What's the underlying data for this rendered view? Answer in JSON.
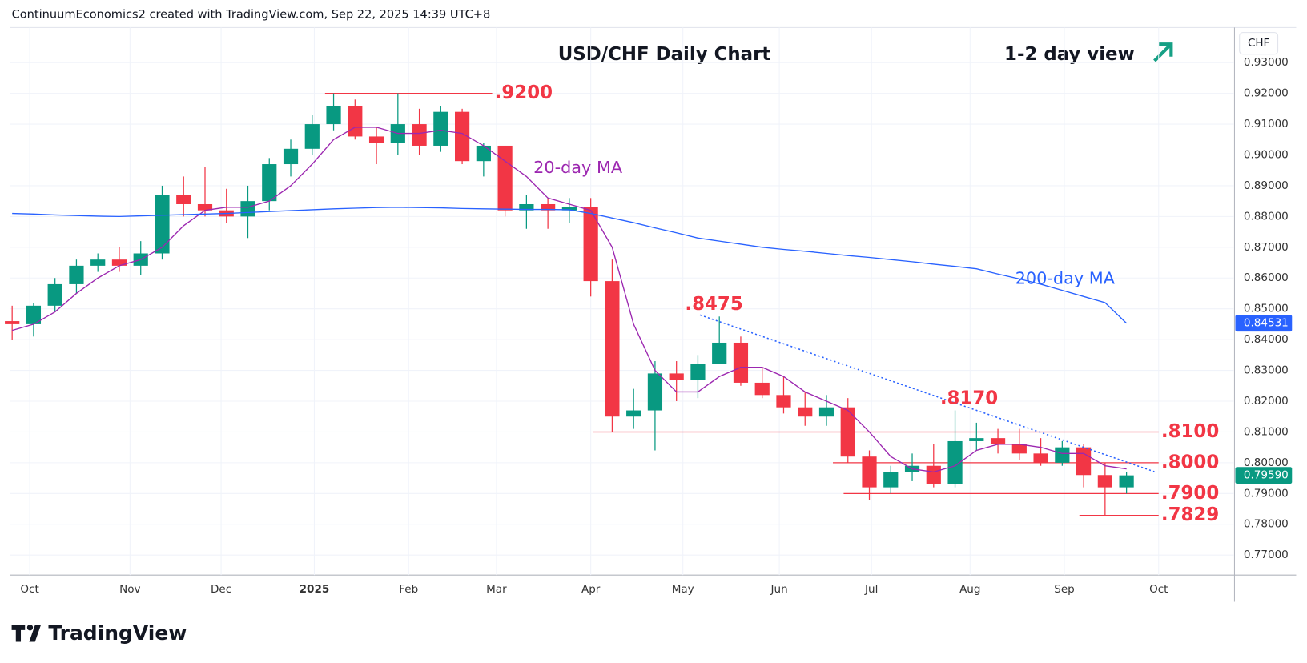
{
  "chart_data": {
    "type": "candlestick",
    "header": "ContinuumEconomics2 created with TradingView.com, Sep 22, 2025 14:39 UTC+8",
    "title": "USD/CHF Daily Chart",
    "subtitle": "1-2 day view",
    "currency": "CHF",
    "brand": "TradingView",
    "up_color": "#089981",
    "down_color": "#f23645",
    "xlim": [
      -0.1,
      57
    ],
    "ylim": [
      0.7635,
      0.9414
    ],
    "yticks": [
      {
        "value": 0.93,
        "label": "0.93000"
      },
      {
        "value": 0.92,
        "label": "0.92000"
      },
      {
        "value": 0.91,
        "label": "0.91000"
      },
      {
        "value": 0.9,
        "label": "0.90000"
      },
      {
        "value": 0.89,
        "label": "0.89000"
      },
      {
        "value": 0.88,
        "label": "0.88000"
      },
      {
        "value": 0.87,
        "label": "0.87000"
      },
      {
        "value": 0.86,
        "label": "0.86000"
      },
      {
        "value": 0.85,
        "label": "0.85000"
      },
      {
        "value": 0.84,
        "label": "0.84000"
      },
      {
        "value": 0.83,
        "label": "0.83000"
      },
      {
        "value": 0.82,
        "label": "0.82000"
      },
      {
        "value": 0.81,
        "label": "0.81000"
      },
      {
        "value": 0.8,
        "label": "0.80000"
      },
      {
        "value": 0.79,
        "label": "0.79000"
      },
      {
        "value": 0.78,
        "label": "0.78000"
      },
      {
        "value": 0.77,
        "label": "0.77000"
      }
    ],
    "xticks": [
      {
        "value": 0.82,
        "label": "Oct"
      },
      {
        "value": 5.5,
        "label": "Nov"
      },
      {
        "value": 9.75,
        "label": "Dec"
      },
      {
        "value": 14.1,
        "label": "2025"
      },
      {
        "value": 18.5,
        "label": "Feb"
      },
      {
        "value": 22.6,
        "label": "Mar"
      },
      {
        "value": 27,
        "label": "Apr"
      },
      {
        "value": 31.3,
        "label": "May"
      },
      {
        "value": 35.8,
        "label": "Jun"
      },
      {
        "value": 40.1,
        "label": "Jul"
      },
      {
        "value": 44.7,
        "label": "Aug"
      },
      {
        "value": 49.1,
        "label": "Sep"
      },
      {
        "value": 53.5,
        "label": "Oct"
      }
    ],
    "grid": true,
    "open": [
      0.846,
      0.845,
      0.851,
      0.858,
      0.864,
      0.866,
      0.864,
      0.868,
      0.887,
      0.884,
      0.882,
      0.88,
      0.885,
      0.897,
      0.902,
      0.91,
      0.916,
      0.906,
      0.904,
      0.91,
      0.903,
      0.914,
      0.898,
      0.903,
      0.882,
      0.884,
      0.882,
      0.883,
      0.859,
      0.815,
      0.817,
      0.829,
      0.827,
      0.832,
      0.839,
      0.826,
      0.822,
      0.818,
      0.815,
      0.818,
      0.802,
      0.792,
      0.797,
      0.799,
      0.793,
      0.807,
      0.808,
      0.806,
      0.803,
      0.8,
      0.805,
      0.796,
      0.792
    ],
    "high": [
      0.851,
      0.852,
      0.86,
      0.866,
      0.868,
      0.87,
      0.872,
      0.89,
      0.893,
      0.896,
      0.889,
      0.89,
      0.899,
      0.905,
      0.913,
      0.92,
      0.918,
      0.909,
      0.92,
      0.915,
      0.916,
      0.915,
      0.904,
      0.903,
      0.887,
      0.886,
      0.886,
      0.886,
      0.866,
      0.824,
      0.833,
      0.833,
      0.835,
      0.8475,
      0.841,
      0.831,
      0.828,
      0.823,
      0.822,
      0.821,
      0.804,
      0.799,
      0.803,
      0.806,
      0.817,
      0.813,
      0.811,
      0.811,
      0.808,
      0.807,
      0.806,
      0.8,
      0.797
    ],
    "low": [
      0.84,
      0.841,
      0.849,
      0.855,
      0.862,
      0.862,
      0.861,
      0.866,
      0.88,
      0.88,
      0.878,
      0.873,
      0.882,
      0.893,
      0.9,
      0.908,
      0.905,
      0.897,
      0.9,
      0.9,
      0.901,
      0.897,
      0.893,
      0.88,
      0.876,
      0.876,
      0.878,
      0.854,
      0.81,
      0.811,
      0.804,
      0.82,
      0.821,
      0.832,
      0.825,
      0.821,
      0.816,
      0.812,
      0.812,
      0.8,
      0.788,
      0.79,
      0.794,
      0.792,
      0.792,
      0.804,
      0.803,
      0.801,
      0.799,
      0.799,
      0.792,
      0.7829,
      0.79
    ],
    "close": [
      0.845,
      0.851,
      0.858,
      0.864,
      0.866,
      0.864,
      0.868,
      0.887,
      0.884,
      0.882,
      0.88,
      0.885,
      0.897,
      0.902,
      0.91,
      0.916,
      0.906,
      0.904,
      0.91,
      0.903,
      0.914,
      0.898,
      0.903,
      0.882,
      0.884,
      0.882,
      0.883,
      0.859,
      0.815,
      0.817,
      0.829,
      0.827,
      0.832,
      0.839,
      0.826,
      0.822,
      0.818,
      0.815,
      0.818,
      0.802,
      0.792,
      0.797,
      0.799,
      0.793,
      0.807,
      0.808,
      0.806,
      0.803,
      0.8,
      0.805,
      0.796,
      0.792,
      0.7959
    ],
    "series": [
      {
        "name": "20-day MA",
        "color": "#9c27b0",
        "values": [
          0.843,
          0.845,
          0.849,
          0.855,
          0.86,
          0.864,
          0.866,
          0.87,
          0.877,
          0.882,
          0.883,
          0.883,
          0.885,
          0.89,
          0.897,
          0.905,
          0.909,
          0.909,
          0.907,
          0.907,
          0.908,
          0.907,
          0.903,
          0.898,
          0.893,
          0.886,
          0.884,
          0.882,
          0.87,
          0.845,
          0.83,
          0.823,
          0.823,
          0.828,
          0.831,
          0.831,
          0.828,
          0.823,
          0.82,
          0.817,
          0.81,
          0.802,
          0.798,
          0.797,
          0.799,
          0.804,
          0.806,
          0.806,
          0.805,
          0.803,
          0.803,
          0.799,
          0.798
        ]
      },
      {
        "name": "200-day MA",
        "color": "#2962ff",
        "values": [
          0.881,
          0.8808,
          0.8805,
          0.8803,
          0.8801,
          0.88,
          0.8802,
          0.8804,
          0.8806,
          0.8808,
          0.881,
          0.8813,
          0.8816,
          0.8819,
          0.8822,
          0.8825,
          0.8827,
          0.8829,
          0.883,
          0.8829,
          0.8828,
          0.8826,
          0.8825,
          0.8824,
          0.8823,
          0.8823,
          0.8822,
          0.881,
          0.8795,
          0.878,
          0.8763,
          0.8747,
          0.873,
          0.872,
          0.871,
          0.87,
          0.8693,
          0.8687,
          0.868,
          0.8673,
          0.8667,
          0.866,
          0.8653,
          0.8645,
          0.8638,
          0.863,
          0.8613,
          0.8597,
          0.858,
          0.856,
          0.854,
          0.852,
          0.8453
        ]
      }
    ],
    "levels": [
      {
        "value": 0.92,
        "label": ".9200",
        "x": [
          14.6,
          22.4
        ]
      },
      {
        "value": 0.81,
        "label": ".8100",
        "x": [
          27.1,
          53.5
        ]
      },
      {
        "value": 0.8,
        "label": ".8000",
        "x": [
          38.3,
          53.5
        ]
      },
      {
        "value": 0.79,
        "label": ".7900",
        "x": [
          38.8,
          53.5
        ]
      },
      {
        "value": 0.7829,
        "label": ".7829",
        "x": [
          49.8,
          53.5
        ]
      }
    ],
    "peaks": [
      {
        "value": 0.8475,
        "label": ".8475",
        "x": 31.4
      },
      {
        "value": 0.817,
        "label": ".8170",
        "x": 43.3
      }
    ],
    "trendline": {
      "x": [
        32.1,
        53.3
      ],
      "y": [
        0.848,
        0.7971
      ]
    },
    "last_prices": [
      {
        "value": 0.84531,
        "label": "0.84531",
        "color": "#2962ff"
      },
      {
        "value": 0.7959,
        "label": "0.79590",
        "color": "#089981"
      }
    ]
  }
}
